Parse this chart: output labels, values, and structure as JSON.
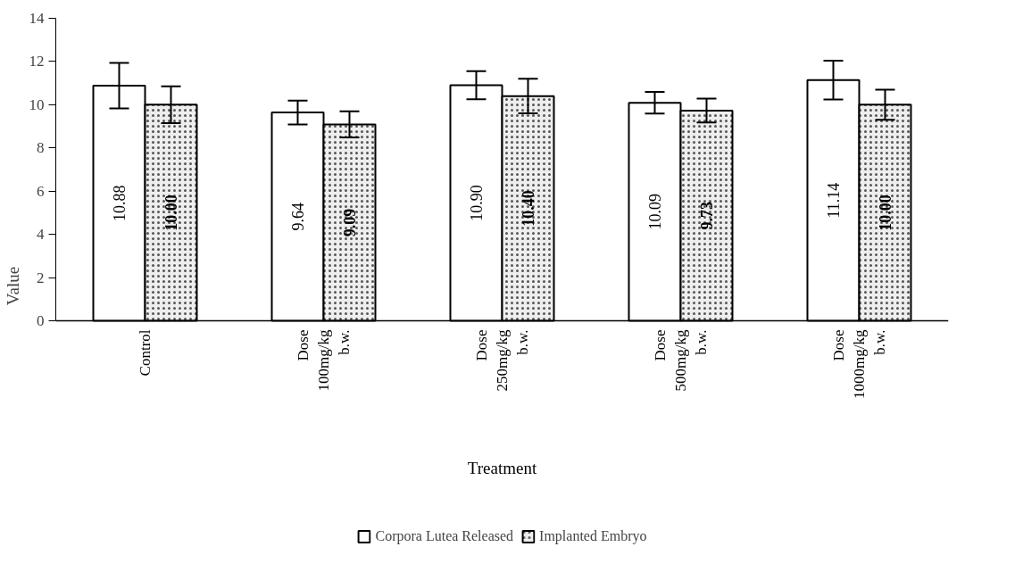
{
  "chart_data": {
    "type": "bar",
    "xlabel": "Treatment",
    "ylabel": "Value",
    "categories": [
      "Control",
      "Dose 100mg/kg b.w.",
      "Dose 250mg/kg b.w.",
      "Dose 500mg/kg b.w.",
      "Dose 1000mg/kg b.w."
    ],
    "series": [
      {
        "name": "Corpora Lutea Released",
        "color": "#ffffff",
        "values": [
          10.88,
          9.64,
          10.9,
          10.09,
          11.14
        ],
        "errors": [
          1.05,
          0.55,
          0.65,
          0.5,
          0.9
        ],
        "value_labels": [
          "10.88",
          "9.64",
          "10.90",
          "10.09",
          "11.14"
        ]
      },
      {
        "name": "Implanted Embryo",
        "color": "#eeeeee",
        "values": [
          10.0,
          9.09,
          10.4,
          9.73,
          10.0
        ],
        "errors": [
          0.85,
          0.6,
          0.8,
          0.55,
          0.7
        ],
        "value_labels": [
          "10.00",
          "9.09",
          "10.40",
          "9.73",
          "10.00"
        ]
      }
    ],
    "ylim": [
      0,
      14
    ],
    "yticks": [
      0,
      2,
      4,
      6,
      8,
      10,
      12,
      14
    ],
    "grid": false,
    "legend": "bottom"
  }
}
